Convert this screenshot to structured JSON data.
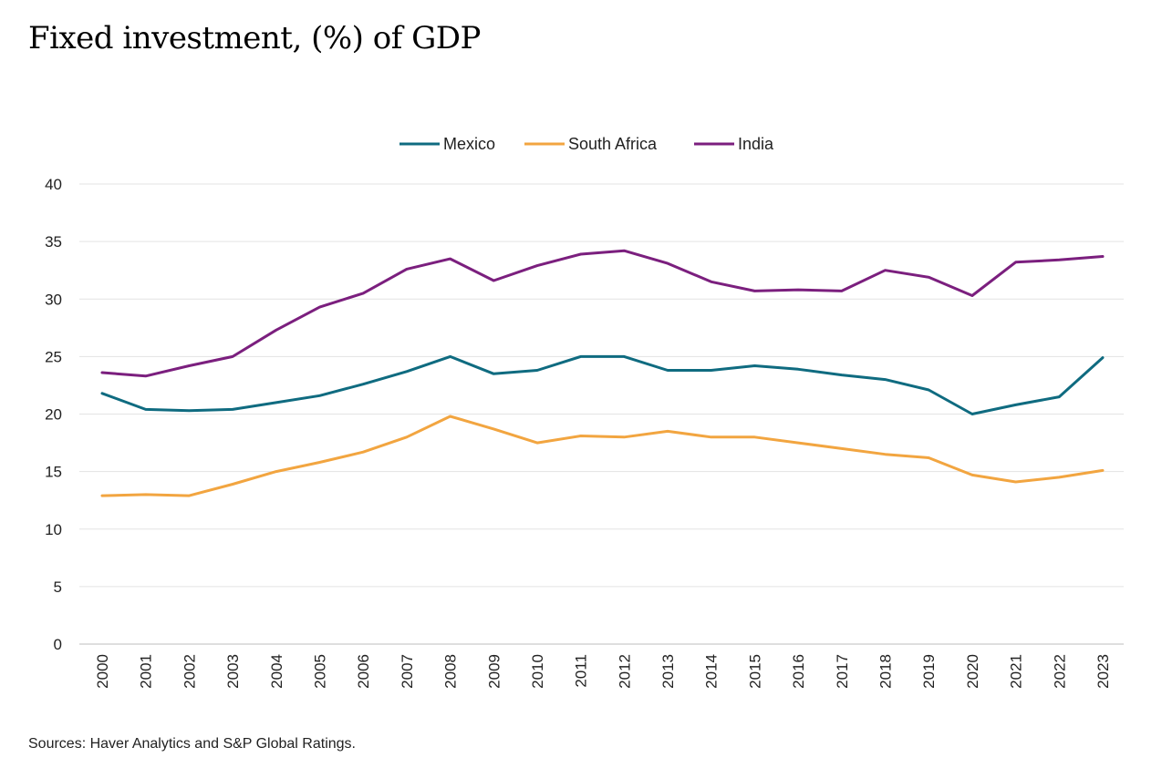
{
  "page": {
    "title": "Fixed investment, (%) of GDP",
    "source": "Sources: Haver Analytics and S&P Global Ratings."
  },
  "chart_data": {
    "type": "line",
    "title": "Fixed investment, (%) of GDP",
    "xlabel": "",
    "ylabel": "",
    "ylim": [
      0,
      40
    ],
    "y_ticks": [
      0,
      5,
      10,
      15,
      20,
      25,
      30,
      35,
      40
    ],
    "grid": "horizontal",
    "legend_position": "top-center",
    "x": [
      "2000",
      "2001",
      "2002",
      "2003",
      "2004",
      "2005",
      "2006",
      "2007",
      "2008",
      "2009",
      "2010",
      "2011",
      "2012",
      "2013",
      "2014",
      "2015",
      "2016",
      "2017",
      "2018",
      "2019",
      "2020",
      "2021",
      "2022",
      "2023"
    ],
    "series": [
      {
        "name": "Mexico",
        "color": "#0f6b80",
        "values": [
          21.8,
          20.4,
          20.3,
          20.4,
          21.0,
          21.6,
          22.6,
          23.7,
          25.0,
          23.5,
          23.8,
          25.0,
          25.0,
          23.8,
          23.8,
          24.2,
          23.9,
          23.4,
          23.0,
          22.1,
          20.0,
          20.8,
          21.5,
          24.9
        ]
      },
      {
        "name": "South Africa",
        "color": "#f2a540",
        "values": [
          12.9,
          13.0,
          12.9,
          13.9,
          15.0,
          15.8,
          16.7,
          18.0,
          19.8,
          18.7,
          17.5,
          18.1,
          18.0,
          18.5,
          18.0,
          18.0,
          17.5,
          17.0,
          16.5,
          16.2,
          14.7,
          14.1,
          14.5,
          15.1
        ]
      },
      {
        "name": "India",
        "color": "#7b1f7e",
        "values": [
          23.6,
          23.3,
          24.2,
          25.0,
          27.3,
          29.3,
          30.5,
          32.6,
          33.5,
          31.6,
          32.9,
          33.9,
          34.2,
          33.1,
          31.5,
          30.7,
          30.8,
          30.7,
          32.5,
          31.9,
          30.3,
          33.2,
          33.4,
          33.7
        ]
      }
    ]
  }
}
